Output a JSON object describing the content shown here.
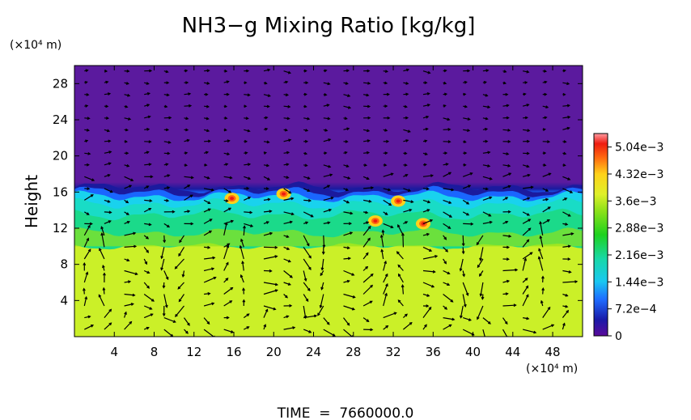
{
  "chart_data": {
    "type": "heatmap",
    "title": "NH3−g Mixing Ratio [kg/kg]",
    "ylabel": "Height",
    "y_unit": "(×10⁴ m)",
    "x_unit": "(×10⁴ m)",
    "footer": "TIME  =  7660000.0",
    "xlim": [
      0,
      51
    ],
    "ylim": [
      0,
      30
    ],
    "x_ticks": [
      "4",
      "8",
      "12",
      "16",
      "20",
      "24",
      "28",
      "32",
      "36",
      "40",
      "44",
      "48"
    ],
    "y_ticks": [
      "4",
      "8",
      "12",
      "16",
      "20",
      "24",
      "28"
    ],
    "colorbar": {
      "range": [
        0,
        0.0054
      ],
      "labels": [
        "0",
        "7.2e−4",
        "1.44e−3",
        "2.16e−3",
        "2.88e−3",
        "3.6e−3",
        "4.32e−3",
        "5.04e−3"
      ],
      "label_values": [
        0,
        0.00072,
        0.00144,
        0.00216,
        0.00288,
        0.0036,
        0.00432,
        0.00504
      ]
    },
    "fields": {
      "upper_layer_value": 0.0,
      "cloud_layer_value": 0.0031,
      "lower_layer_value": 0.0038,
      "cloud_top_height": 16.5,
      "cloud_base_height": 10.0
    },
    "hotspots": [
      {
        "x": 15.8,
        "y": 15.3,
        "value": 0.0052
      },
      {
        "x": 21.0,
        "y": 15.8,
        "value": 0.0046
      },
      {
        "x": 30.2,
        "y": 12.8,
        "value": 0.0044
      },
      {
        "x": 32.5,
        "y": 15.0,
        "value": 0.0047
      },
      {
        "x": 35.0,
        "y": 12.5,
        "value": 0.0052
      }
    ],
    "vectors": {
      "x_spacing": 2,
      "y_spacing": 1.3
    }
  }
}
